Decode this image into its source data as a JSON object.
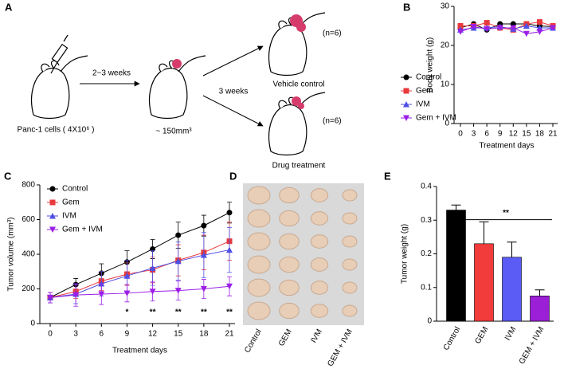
{
  "diagram": {
    "label": "A",
    "step1": "2~3 weeks",
    "cells": "Panc-1 cells ( 4X10⁶ )",
    "size": "~ 150mm³",
    "step2": "3 weeks",
    "n_top": "(n=6)",
    "group_top": "Vehicle control",
    "n_bottom": "(n=6)",
    "group_bottom": "Drug treatment"
  },
  "photo": {
    "label": "D",
    "categories": [
      "Control",
      "GEM",
      "IVM",
      "GEM + IVM"
    ]
  },
  "chart_data": [
    {
      "type": "line",
      "label": "B",
      "y_label": "Body weight (g)",
      "x_label": "Treatment days",
      "x": [
        0,
        3,
        6,
        9,
        12,
        15,
        18,
        21
      ],
      "xlim": [
        0,
        21
      ],
      "xticks": [
        0,
        3,
        6,
        9,
        12,
        15,
        18,
        21
      ],
      "ylim": [
        0,
        30
      ],
      "yticks": [
        0,
        10,
        20,
        30
      ],
      "series": [
        {
          "name": "Control",
          "color": "#000000",
          "marker": "circle",
          "values": [
            24.5,
            25.5,
            24,
            25.5,
            25.5,
            25.5,
            25,
            24.8
          ]
        },
        {
          "name": "Gem",
          "color": "#e8393b",
          "marker": "square",
          "values": [
            25,
            25,
            25.8,
            24.5,
            24,
            25.5,
            26,
            25
          ]
        },
        {
          "name": "IVM",
          "color": "#4f4fe6",
          "marker": "triangle-up",
          "values": [
            24,
            24.5,
            24.5,
            24.8,
            24.2,
            25,
            24.5,
            24.5
          ]
        },
        {
          "name": "Gem + IVM",
          "color": "#9b1fe8",
          "marker": "triangle-down",
          "values": [
            23.5,
            24.8,
            24.2,
            24.5,
            24.5,
            23,
            23.5,
            24.5
          ]
        }
      ]
    },
    {
      "type": "line",
      "label": "C",
      "y_label": "Tumor volume (mm³)",
      "x_label": "Treatment days",
      "x": [
        0,
        3,
        6,
        9,
        12,
        15,
        18,
        21
      ],
      "xlim": [
        0,
        21
      ],
      "xticks": [
        0,
        3,
        6,
        9,
        12,
        15,
        18,
        21
      ],
      "ylim": [
        0,
        800
      ],
      "yticks": [
        0,
        200,
        400,
        600,
        800
      ],
      "series": [
        {
          "name": "Control",
          "color": "#000000",
          "marker": "circle",
          "values": [
            150,
            225,
            290,
            355,
            430,
            510,
            565,
            640
          ],
          "errors": [
            30,
            35,
            55,
            65,
            55,
            75,
            60,
            60
          ]
        },
        {
          "name": "Gem",
          "color": "#e8393b",
          "marker": "square",
          "values": [
            150,
            185,
            245,
            285,
            310,
            365,
            410,
            475
          ],
          "errors": [
            30,
            40,
            55,
            65,
            75,
            90,
            100,
            110
          ]
        },
        {
          "name": "IVM",
          "color": "#4f4fe6",
          "marker": "triangle-up",
          "values": [
            150,
            170,
            230,
            275,
            320,
            360,
            395,
            425
          ],
          "errors": [
            30,
            55,
            70,
            90,
            100,
            110,
            130,
            130
          ]
        },
        {
          "name": "Gem + IVM",
          "color": "#9b1fe8",
          "marker": "triangle-down",
          "values": [
            150,
            165,
            170,
            175,
            185,
            190,
            200,
            215
          ],
          "errors": [
            30,
            65,
            60,
            50,
            55,
            55,
            55,
            55
          ]
        }
      ],
      "annotations": [
        {
          "x": 9,
          "text": "*"
        },
        {
          "x": 12,
          "text": "**"
        },
        {
          "x": 15,
          "text": "**"
        },
        {
          "x": 18,
          "text": "**"
        },
        {
          "x": 21,
          "text": "**"
        }
      ]
    },
    {
      "type": "bar",
      "label": "E",
      "y_label": "Tumor weight  (g)",
      "categories": [
        "Control",
        "GEM",
        "IVM",
        "GEM + IVM"
      ],
      "values": [
        0.33,
        0.23,
        0.19,
        0.075
      ],
      "errors": [
        0.015,
        0.065,
        0.045,
        0.018
      ],
      "colors": [
        "#000000",
        "#f23b3b",
        "#5b5bf5",
        "#9b1fd6"
      ],
      "ylim": [
        0,
        0.4
      ],
      "yticks": [
        0,
        0.1,
        0.2,
        0.3,
        0.4
      ],
      "annotation": "**"
    }
  ]
}
